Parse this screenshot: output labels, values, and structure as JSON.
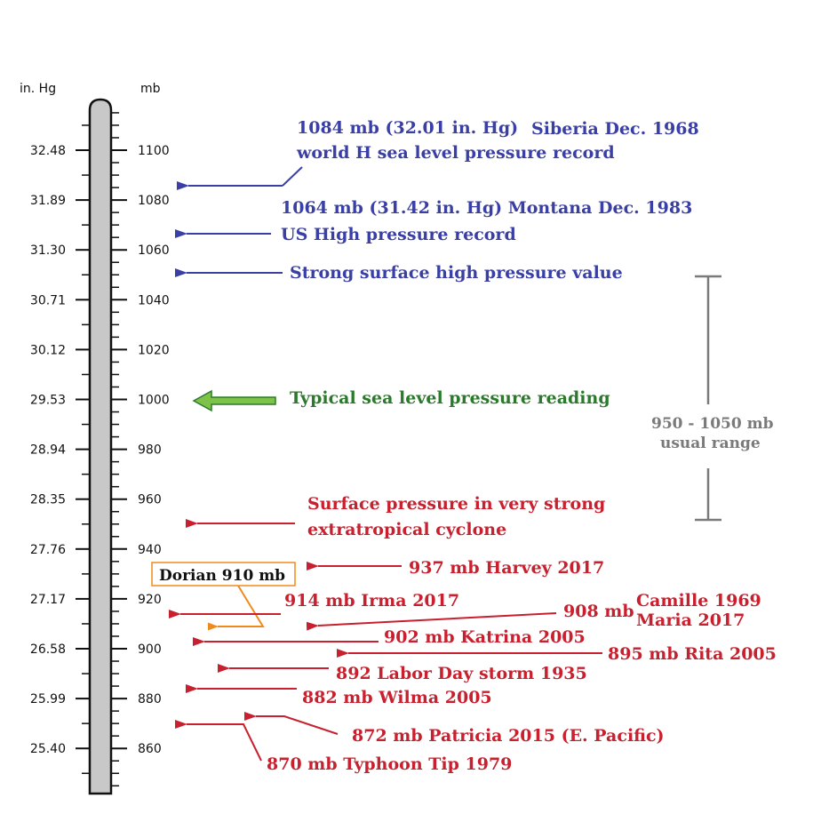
{
  "header": {
    "inhg": "in. Hg",
    "mb": "mb"
  },
  "inhg_ticks": [
    "32.48",
    "31.89",
    "31.30",
    "30.71",
    "30.12",
    "29.53",
    "28.94",
    "28.35",
    "27.76",
    "27.17",
    "26.58",
    "25.99",
    "25.40"
  ],
  "mb_ticks": [
    "1100",
    "1080",
    "1060",
    "1040",
    "1020",
    "1000",
    "980",
    "960",
    "940",
    "920",
    "900",
    "880",
    "860"
  ],
  "labels": {
    "siberia_1": "1084 mb (32.01 in. Hg)",
    "siberia_2": "Siberia Dec. 1968",
    "siberia_3": "world H sea level pressure record",
    "montana_1": "1064 mb (31.42 in. Hg) Montana Dec. 1983",
    "montana_2": "US High pressure record",
    "strong_high": "Strong surface high pressure value",
    "typical": "Typical sea level pressure reading",
    "range_1": "950 - 1050 mb",
    "range_2": "usual range",
    "cyclone_1": "Surface pressure in very strong",
    "cyclone_2": "extratropical cyclone",
    "dorian": "Dorian 910 mb",
    "harvey": "937 mb Harvey 2017",
    "irma": "914 mb Irma 2017",
    "mb908": "908 mb",
    "camille": "Camille 1969",
    "maria": "Maria 2017",
    "katrina": "902 mb Katrina 2005",
    "rita": "895 mb Rita 2005",
    "laborday": "892 Labor Day storm 1935",
    "wilma": "882 mb Wilma 2005",
    "patricia": "872 mb Patricia 2015 (E. Pacific)",
    "tip": "870 mb Typhoon Tip 1979"
  },
  "colors": {
    "high": "#3a3fa6",
    "typical": "#2b7a2b",
    "typical_arrow": "#7fc24a",
    "low": "#c8202e",
    "range": "#7a7a7a",
    "dorian": "#f08a1c"
  }
}
